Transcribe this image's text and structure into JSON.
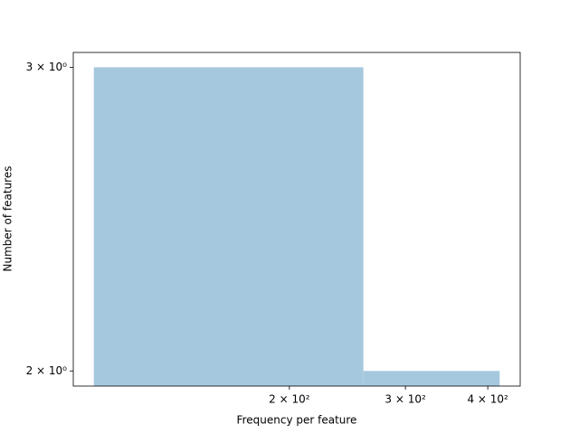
{
  "chart_data": {
    "type": "histogram",
    "xlabel": "Frequency per feature",
    "ylabel": "Number of features",
    "bins": [
      101,
      259,
      417
    ],
    "values": [
      3,
      2
    ],
    "color": "#a6c8df",
    "xscale": "log",
    "yscale": "log",
    "xlim": [
      94,
      448
    ],
    "ylim": [
      1.96,
      3.06
    ],
    "xticks": [
      {
        "value": 200,
        "label": "2 × 10²"
      },
      {
        "value": 300,
        "label": "3 × 10²"
      },
      {
        "value": 400,
        "label": "4 × 10²"
      }
    ],
    "yticks": [
      {
        "value": 2,
        "label": "2 × 10⁰"
      },
      {
        "value": 3,
        "label": "3 × 10⁰"
      }
    ]
  }
}
